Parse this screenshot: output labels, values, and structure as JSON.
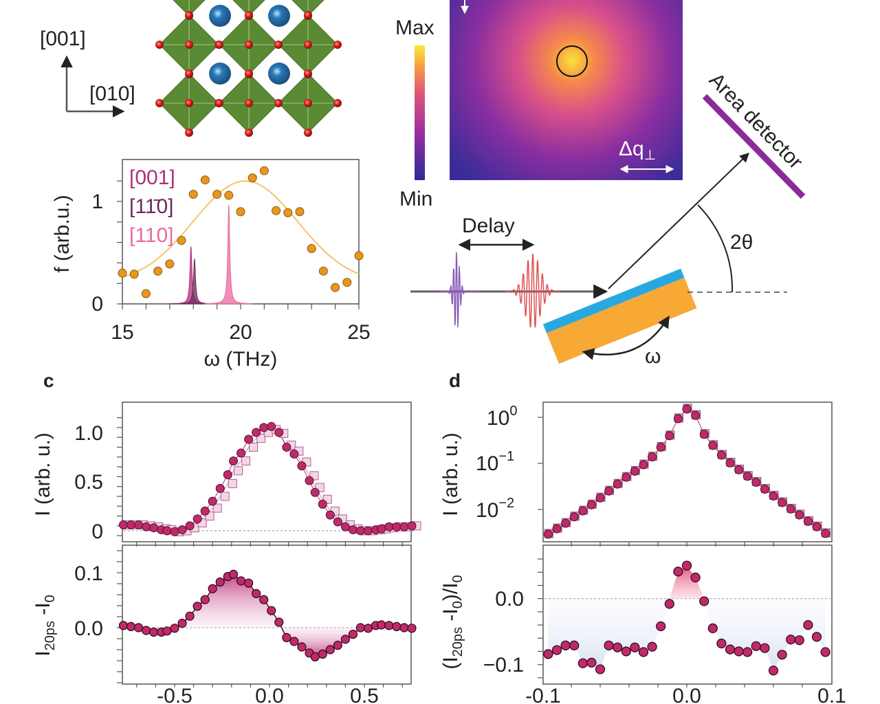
{
  "crystal": {
    "axis_up_label": "[001]",
    "axis_right_label": "[010]",
    "colors": {
      "octahedron": "#5a8a34",
      "a_site": "#2a78b8",
      "oxygen": "#d8201c"
    }
  },
  "heatmap": {
    "colorbar_max": "Max",
    "colorbar_min": "Min",
    "dq_label": "Δq",
    "dq_sub": "⊥",
    "colors": [
      "#fbe23a",
      "#f58a4a",
      "#d9508a",
      "#8a2ea0",
      "#3d2c98"
    ]
  },
  "setup": {
    "delay_label": "Delay",
    "two_theta_label": "2θ",
    "omega_label": "ω",
    "detector_label": "Area detector",
    "colors": {
      "film": "#29a8e0",
      "substrate": "#f7a835",
      "detector": "#8b2a9a",
      "pump": "#8a5ab8",
      "probe": "#e05050"
    }
  },
  "panels": {
    "c": "c",
    "d": "d"
  },
  "chart_data": [
    {
      "type": "scatter",
      "id": "phonon-dos",
      "xlabel": "ω (THz)",
      "ylabel": "f (arb.u.)",
      "xlim": [
        15,
        25
      ],
      "ylim": [
        0,
        1.35
      ],
      "xticks": [
        "15",
        "20",
        "25"
      ],
      "yticks": [
        "0",
        "1"
      ],
      "legend_placement": "top-left",
      "points": {
        "color": "#e8961e",
        "x": [
          15,
          15.5,
          16,
          16.5,
          17,
          17.5,
          18,
          18.5,
          19,
          19.5,
          20,
          20.5,
          21,
          21.5,
          22,
          22.5,
          23,
          23.5,
          24,
          24.5,
          25
        ],
        "y": [
          0.3,
          0.29,
          0.1,
          0.32,
          0.39,
          0.62,
          1.07,
          1.21,
          1.07,
          1.06,
          0.9,
          1.23,
          1.3,
          0.91,
          0.89,
          0.9,
          0.54,
          0.32,
          0.16,
          0.21,
          0.47
        ]
      },
      "fit": {
        "color": "#f3c46a",
        "baseline": 0.2,
        "amplitude": 1.0,
        "center": 20.2,
        "sigma": 2.2
      },
      "series": [
        {
          "name": "[001]",
          "color": "#b0307a",
          "center": 17.9,
          "height": 0.56,
          "width": 0.05
        },
        {
          "name": "[11̄0]",
          "color": "#6e2a58",
          "center": 18.05,
          "height": 0.44,
          "width": 0.05
        },
        {
          "name": "[110]",
          "color": "#ea6aa0",
          "center": 19.5,
          "height": 0.97,
          "width": 0.05
        }
      ]
    },
    {
      "type": "scatter",
      "id": "c-top",
      "ylabel": "I (arb. u.)",
      "xlim": [
        -0.775,
        0.746
      ],
      "ylim": [
        -0.1,
        1.3
      ],
      "xticks": [
        "-0.5",
        "0.0",
        "0.5"
      ],
      "yticks": [
        "0",
        "0.5",
        "1.0"
      ],
      "x": [
        -0.77,
        -0.73,
        -0.69,
        -0.65,
        -0.61,
        -0.57,
        -0.54,
        -0.5,
        -0.46,
        -0.42,
        -0.38,
        -0.34,
        -0.3,
        -0.26,
        -0.22,
        -0.19,
        -0.15,
        -0.11,
        -0.07,
        -0.03,
        0.01,
        0.05,
        0.09,
        0.13,
        0.17,
        0.21,
        0.24,
        0.28,
        0.32,
        0.36,
        0.4,
        0.44,
        0.48,
        0.52,
        0.56,
        0.59,
        0.63,
        0.67,
        0.71,
        0.75
      ],
      "circles": [
        0.06,
        0.06,
        0.06,
        0.04,
        0.03,
        0.01,
        0.0,
        -0.01,
        0.01,
        0.05,
        0.12,
        0.2,
        0.3,
        0.43,
        0.57,
        0.71,
        0.79,
        0.93,
        1.0,
        1.05,
        1.06,
        1.0,
        0.85,
        0.78,
        0.66,
        0.51,
        0.39,
        0.27,
        0.16,
        0.09,
        0.04,
        0.01,
        0.0,
        0.0,
        0.01,
        0.02,
        0.04,
        0.04,
        0.04,
        0.05
      ],
      "squares": [
        0.06,
        0.06,
        0.06,
        0.05,
        0.04,
        0.02,
        0.01,
        -0.01,
        0.0,
        0.03,
        0.08,
        0.15,
        0.23,
        0.35,
        0.48,
        0.61,
        0.71,
        0.85,
        0.94,
        1.0,
        1.03,
        0.99,
        0.87,
        0.81,
        0.7,
        0.56,
        0.44,
        0.32,
        0.2,
        0.12,
        0.06,
        0.02,
        0.0,
        0.0,
        0.01,
        0.02,
        0.03,
        0.04,
        0.04,
        0.05
      ],
      "colors": {
        "circle": "#c02a6a",
        "square": "#f3d6e6"
      }
    },
    {
      "type": "scatter",
      "id": "c-bottom",
      "ylabel": {
        "main": "I",
        "sub1": "20ps",
        "mid": " -I",
        "sub2": "0"
      },
      "ylim": [
        -0.105,
        0.147
      ],
      "yticks": [
        "0.0",
        "0.1"
      ],
      "values": [
        0.004,
        0.002,
        0.0,
        -0.005,
        -0.008,
        -0.008,
        -0.006,
        -0.001,
        0.008,
        0.021,
        0.039,
        0.051,
        0.071,
        0.083,
        0.093,
        0.097,
        0.085,
        0.081,
        0.062,
        0.051,
        0.031,
        0.01,
        -0.018,
        -0.025,
        -0.035,
        -0.046,
        -0.053,
        -0.048,
        -0.04,
        -0.032,
        -0.021,
        -0.012,
        0.0,
        -0.001,
        0.004,
        0.005,
        0.004,
        0.002,
        0.0,
        -0.001
      ]
    },
    {
      "type": "scatter",
      "id": "d-top",
      "ylabel": "I (arb. u.)",
      "yscale": "log",
      "xlim": [
        -0.1,
        0.1
      ],
      "ylim": [
        0.002,
        2.1
      ],
      "xticks": [
        "-0.1",
        "0.0",
        "0.1"
      ],
      "yticks": [
        {
          "base": "10",
          "exp": "0"
        },
        {
          "base": "10",
          "exp": "−1"
        },
        {
          "base": "10",
          "exp": "−2"
        }
      ],
      "x": [
        -0.096,
        -0.09,
        -0.084,
        -0.078,
        -0.072,
        -0.066,
        -0.06,
        -0.054,
        -0.048,
        -0.042,
        -0.036,
        -0.03,
        -0.024,
        -0.018,
        -0.012,
        -0.006,
        0.0,
        0.006,
        0.012,
        0.018,
        0.024,
        0.03,
        0.036,
        0.042,
        0.048,
        0.054,
        0.06,
        0.066,
        0.072,
        0.078,
        0.084,
        0.09,
        0.096
      ],
      "circles": [
        0.0029,
        0.0038,
        0.005,
        0.0069,
        0.0093,
        0.0126,
        0.0178,
        0.0251,
        0.0355,
        0.0501,
        0.0676,
        0.0933,
        0.138,
        0.224,
        0.398,
        0.933,
        1.51,
        1.1,
        0.427,
        0.245,
        0.151,
        0.102,
        0.0724,
        0.0525,
        0.0389,
        0.0275,
        0.0195,
        0.0141,
        0.0102,
        0.0076,
        0.0055,
        0.0042,
        0.003
      ]
    },
    {
      "type": "scatter",
      "id": "d-bottom",
      "ylabel": {
        "open": "(I",
        "sub1": "20ps",
        "mid": " -I",
        "sub2": "0",
        "close": ")/I",
        "sub3": "0"
      },
      "ylim": [
        -0.129,
        0.081
      ],
      "yticks": [
        "0.0",
        "−0.1"
      ],
      "values": [
        -0.084,
        -0.078,
        -0.071,
        -0.071,
        -0.098,
        -0.097,
        -0.107,
        -0.071,
        -0.074,
        -0.08,
        -0.074,
        -0.081,
        -0.073,
        -0.042,
        -0.008,
        0.041,
        0.05,
        0.032,
        -0.004,
        -0.045,
        -0.068,
        -0.077,
        -0.08,
        -0.081,
        -0.072,
        -0.075,
        -0.109,
        -0.085,
        -0.062,
        -0.063,
        -0.04,
        -0.058,
        -0.081
      ],
      "colors": {
        "positive_fill": "#e8507a",
        "negative_fill": "#c8d4ea"
      }
    }
  ]
}
